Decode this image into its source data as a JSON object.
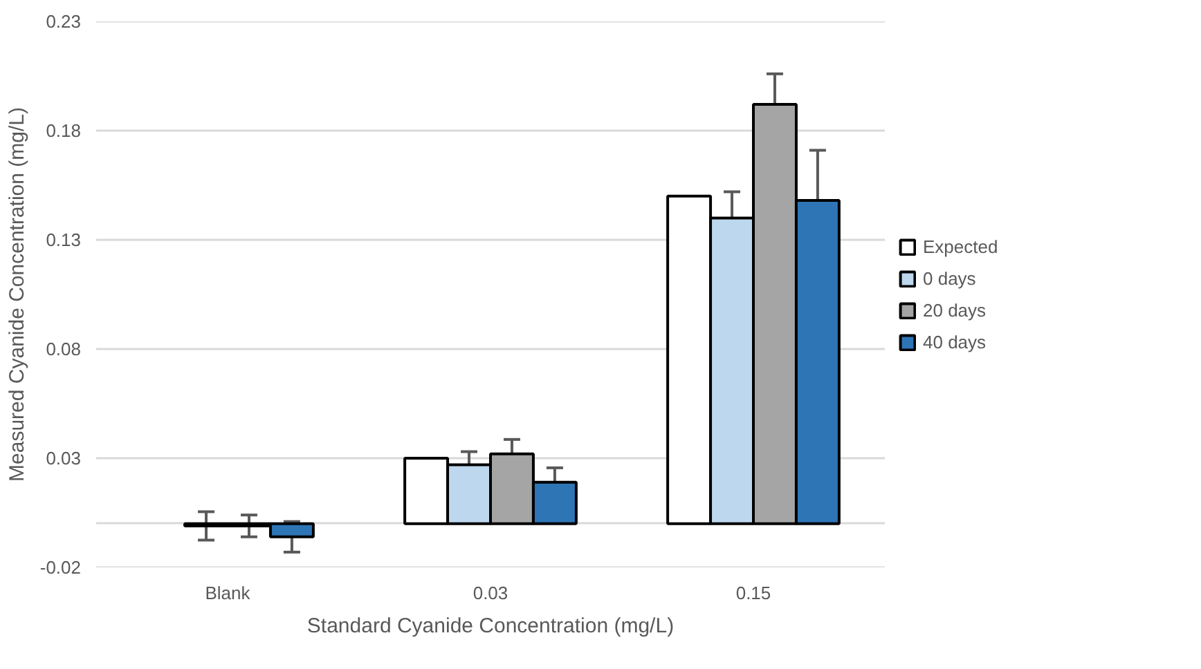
{
  "chart_data": {
    "type": "bar",
    "xlabel": "Standard Cyanide Concentration (mg/L)",
    "ylabel": "Measured Cyanide Concentration (mg/L)",
    "categories": [
      "Blank",
      "0.03",
      "0.15"
    ],
    "series": [
      {
        "name": "Expected",
        "color": "#ffffff",
        "values": [
          null,
          0.03,
          0.15
        ]
      },
      {
        "name": "0 days",
        "color": "#bdd7ee",
        "values": [
          -0.001,
          0.027,
          0.14
        ],
        "errors": [
          0.0065,
          0.006,
          0.012
        ]
      },
      {
        "name": "20 days",
        "color": "#a5a5a5",
        "values": [
          -0.001,
          0.032,
          0.192
        ],
        "errors": [
          0.005,
          0.0066,
          0.014
        ]
      },
      {
        "name": "40 days",
        "color": "#2e75b6",
        "values": [
          -0.006,
          0.019,
          0.148
        ],
        "errors": [
          0.007,
          0.0066,
          0.023
        ]
      }
    ],
    "ylim": [
      -0.02,
      0.23
    ],
    "yticks": [
      -0.02,
      {
        "value": 0,
        "label": null
      },
      0.03,
      0.08,
      0.13,
      0.18,
      0.23
    ],
    "grid": "y",
    "legend": "right"
  }
}
